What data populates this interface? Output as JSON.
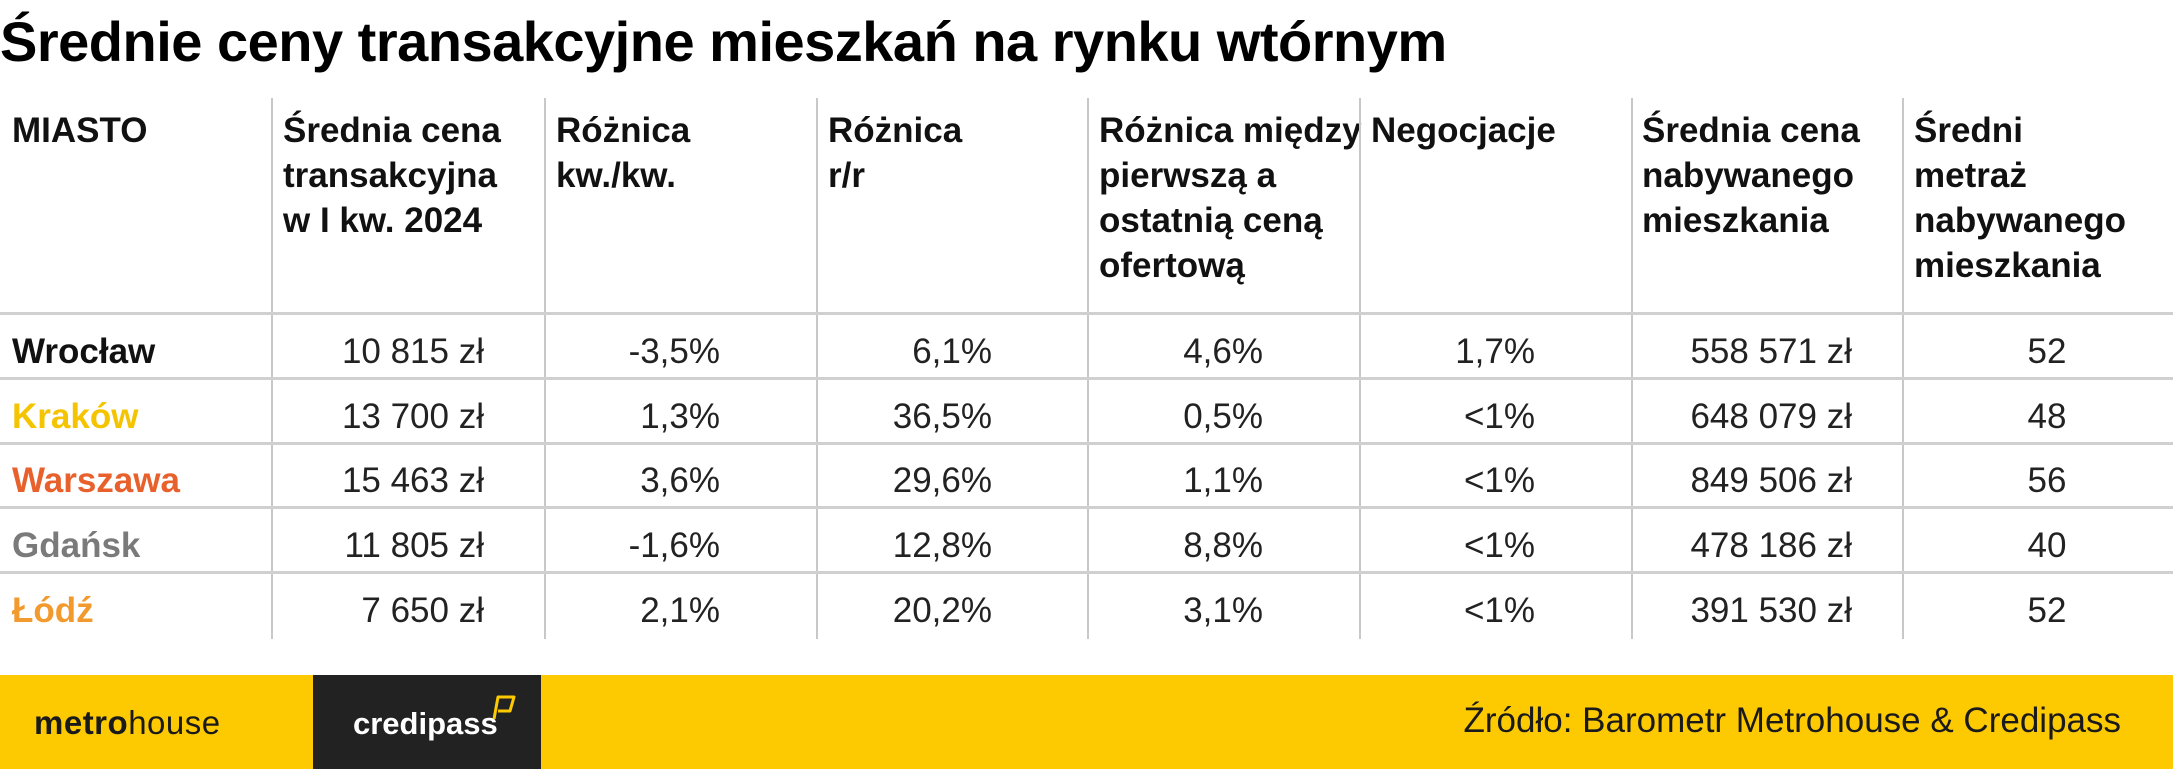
{
  "title": "Średnie ceny transakcyjne mieszkań na rynku wtórnym",
  "table": {
    "headers": [
      [
        "MIASTO"
      ],
      [
        "Średnia cena",
        "transakcyjna",
        "w I kw. 2024"
      ],
      [
        "Różnica",
        "kw./kw."
      ],
      [
        "Różnica",
        "r/r"
      ],
      [
        "Różnica między",
        "pierwszą a",
        "ostatnią ceną",
        "ofertową"
      ],
      [
        "Negocjacje"
      ],
      [
        "Średnia cena",
        "nabywanego",
        "mieszkania"
      ],
      [
        "Średni",
        "metraż",
        "nabywanego",
        "mieszkania"
      ]
    ],
    "rows": [
      {
        "city": "Wrocław",
        "color": "#111111",
        "values": [
          "10 815 zł",
          "-3,5%",
          "6,1%",
          "4,6%",
          "1,7%",
          "558 571 zł",
          "52"
        ]
      },
      {
        "city": "Kraków",
        "color": "#f5c400",
        "values": [
          "13 700 zł",
          "1,3%",
          "36,5%",
          "0,5%",
          "<1%",
          "648 079 zł",
          "48"
        ]
      },
      {
        "city": "Warszawa",
        "color": "#e8602c",
        "values": [
          "15 463 zł",
          "3,6%",
          "29,6%",
          "1,1%",
          "<1%",
          "849 506 zł",
          "56"
        ]
      },
      {
        "city": "Gdańsk",
        "color": "#7a7a7a",
        "values": [
          "11 805 zł",
          "-1,6%",
          "12,8%",
          "8,8%",
          "<1%",
          "478 186 zł",
          "40"
        ]
      },
      {
        "city": "Łódź",
        "color": "#f29a2e",
        "values": [
          "7 650 zł",
          "2,1%",
          "20,2%",
          "3,1%",
          "<1%",
          "391 530 zł",
          "52"
        ]
      }
    ]
  },
  "footer": {
    "metro_bold": "metro",
    "metro_light": "house",
    "credipass": "credipass",
    "source": "Źródło: Barometr Metrohouse & Credipass",
    "background": "#fdc900"
  }
}
